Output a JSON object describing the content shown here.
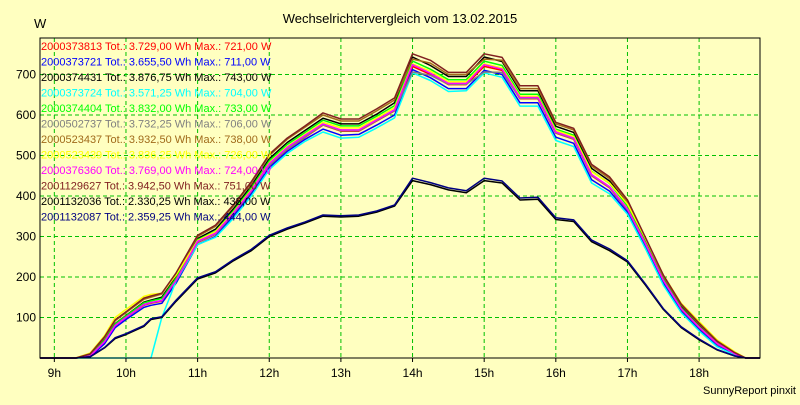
{
  "chart_data": {
    "type": "line",
    "title": "Wechselrichtervergleich vom 13.02.2015",
    "ylabel": "W",
    "xlabel": "",
    "footer": "SunnyReport pinxit",
    "xlim": [
      8.8,
      18.85
    ],
    "ylim": [
      0,
      790
    ],
    "grid": true,
    "legend_position": "top-left",
    "x_ticks": [
      {
        "value": 9,
        "label": "9h"
      },
      {
        "value": 10,
        "label": "10h"
      },
      {
        "value": 11,
        "label": "11h"
      },
      {
        "value": 12,
        "label": "12h"
      },
      {
        "value": 13,
        "label": "13h"
      },
      {
        "value": 14,
        "label": "14h"
      },
      {
        "value": 15,
        "label": "15h"
      },
      {
        "value": 16,
        "label": "16h"
      },
      {
        "value": 17,
        "label": "17h"
      },
      {
        "value": 18,
        "label": "18h"
      }
    ],
    "y_ticks": [
      100,
      200,
      300,
      400,
      500,
      600,
      700
    ],
    "x": [
      8.8,
      9.3,
      9.5,
      9.7,
      9.85,
      10.0,
      10.25,
      10.35,
      10.5,
      10.7,
      11.0,
      11.25,
      11.5,
      11.75,
      12.0,
      12.25,
      12.5,
      12.75,
      13.0,
      13.25,
      13.5,
      13.75,
      14.0,
      14.25,
      14.5,
      14.75,
      15.0,
      15.25,
      15.5,
      15.75,
      16.0,
      16.25,
      16.5,
      16.75,
      17.0,
      17.25,
      17.5,
      17.75,
      18.0,
      18.25,
      18.5,
      18.65,
      18.85
    ],
    "series": [
      {
        "name": "2000373813",
        "legend": "2000373813 Tot.: 3.729,00 Wh Max.: 721,00 W",
        "color": "#ff0000",
        "values": [
          0,
          0,
          5,
          40,
          80,
          100,
          130,
          135,
          140,
          190,
          285,
          305,
          355,
          410,
          475,
          515,
          545,
          575,
          560,
          560,
          585,
          610,
          720,
          700,
          675,
          675,
          720,
          710,
          640,
          640,
          555,
          540,
          450,
          420,
          365,
          280,
          190,
          120,
          75,
          35,
          10,
          0,
          0
        ]
      },
      {
        "name": "2000373721",
        "legend": "2000373721 Tot.: 3.655,50 Wh Max.: 711,00 W",
        "color": "#0000ff",
        "values": [
          0,
          0,
          3,
          35,
          75,
          95,
          125,
          130,
          135,
          185,
          280,
          300,
          350,
          405,
          470,
          510,
          540,
          565,
          550,
          552,
          575,
          600,
          712,
          692,
          665,
          665,
          710,
          700,
          630,
          630,
          545,
          530,
          440,
          412,
          360,
          275,
          185,
          115,
          70,
          30,
          8,
          0,
          0
        ]
      },
      {
        "name": "2000374431",
        "legend": "2000374431 Tot.: 3.876,75 Wh Max.: 743,00 W",
        "color": "#000000",
        "values": [
          0,
          0,
          8,
          45,
          85,
          105,
          138,
          143,
          150,
          200,
          295,
          318,
          368,
          425,
          492,
          532,
          562,
          592,
          578,
          578,
          602,
          630,
          743,
          722,
          695,
          695,
          743,
          732,
          660,
          660,
          572,
          557,
          468,
          437,
          380,
          290,
          198,
          127,
          80,
          38,
          12,
          0,
          0
        ]
      },
      {
        "name": "2000373724",
        "legend": "2000373724 Tot.: 3.571,25 Wh Max.: 704,00 W",
        "color": "#00ffff",
        "values": [
          0,
          0,
          0,
          0,
          0,
          0,
          0,
          0,
          100,
          190,
          280,
          298,
          345,
          400,
          465,
          505,
          535,
          558,
          543,
          545,
          568,
          593,
          704,
          685,
          658,
          660,
          704,
          693,
          622,
          622,
          537,
          522,
          432,
          405,
          355,
          270,
          180,
          112,
          67,
          28,
          7,
          0,
          0
        ]
      },
      {
        "name": "2000374404",
        "legend": "2000374404 Tot.: 3.832,00 Wh Max.: 733,00 W",
        "color": "#00ff00",
        "values": [
          0,
          0,
          6,
          44,
          84,
          104,
          136,
          141,
          147,
          197,
          292,
          313,
          363,
          420,
          487,
          527,
          557,
          587,
          573,
          573,
          597,
          623,
          733,
          713,
          687,
          687,
          733,
          722,
          651,
          651,
          565,
          550,
          461,
          431,
          375,
          286,
          195,
          124,
          78,
          37,
          11,
          0,
          0
        ]
      },
      {
        "name": "2000502737",
        "legend": "2000502737 Tot.: 3.732,25 Wh Max.: 706,00 W",
        "color": "#808080",
        "values": [
          0,
          0,
          5,
          41,
          81,
          101,
          131,
          136,
          141,
          191,
          286,
          306,
          356,
          411,
          476,
          516,
          546,
          576,
          561,
          561,
          586,
          611,
          706,
          698,
          676,
          676,
          706,
          705,
          641,
          641,
          556,
          541,
          451,
          421,
          366,
          281,
          191,
          121,
          76,
          36,
          10,
          0,
          0
        ]
      },
      {
        "name": "2000523437",
        "legend": "2000523437 Tot.: 3.932,50 Wh Max.: 738,00 W",
        "color": "#a06a1a",
        "values": [
          0,
          0,
          10,
          50,
          92,
          112,
          145,
          150,
          158,
          208,
          300,
          325,
          375,
          432,
          500,
          540,
          570,
          600,
          585,
          585,
          610,
          637,
          738,
          728,
          700,
          700,
          738,
          735,
          665,
          665,
          578,
          563,
          474,
          443,
          386,
          295,
          202,
          131,
          84,
          41,
          13,
          0,
          0
        ]
      },
      {
        "name": "2000523439",
        "legend": "2000523439 Tot.: 3.836,25 Wh Max.: 726,00 W",
        "color": "#ffff00",
        "values": [
          0,
          0,
          12,
          55,
          100,
          120,
          152,
          157,
          160,
          205,
          290,
          312,
          360,
          415,
          482,
          522,
          552,
          582,
          568,
          568,
          592,
          618,
          726,
          708,
          682,
          682,
          726,
          716,
          646,
          646,
          562,
          547,
          460,
          432,
          380,
          295,
          205,
          135,
          90,
          45,
          15,
          0,
          0
        ]
      },
      {
        "name": "2000376360",
        "legend": "2000376360 Tot.: 3.769,00 Wh Max.: 724,00 W",
        "color": "#ff00ff",
        "values": [
          0,
          0,
          5,
          40,
          80,
          100,
          132,
          137,
          142,
          192,
          288,
          308,
          358,
          413,
          480,
          520,
          550,
          578,
          563,
          563,
          588,
          613,
          724,
          703,
          678,
          678,
          724,
          713,
          643,
          643,
          558,
          543,
          453,
          423,
          368,
          283,
          192,
          122,
          76,
          36,
          10,
          0,
          0
        ]
      },
      {
        "name": "2001129627",
        "legend": "2001129627 Tot.: 3.942,50 Wh Max.: 751,00 W",
        "color": "#802020",
        "values": [
          0,
          0,
          10,
          52,
          94,
          114,
          148,
          153,
          160,
          210,
          303,
          328,
          378,
          435,
          503,
          543,
          573,
          605,
          590,
          590,
          615,
          642,
          751,
          735,
          705,
          705,
          751,
          742,
          672,
          672,
          582,
          567,
          478,
          447,
          390,
          298,
          205,
          133,
          86,
          42,
          13,
          0,
          0
        ]
      },
      {
        "name": "2001132036",
        "legend": "2001132036 Tot.: 2.330,25 Wh Max.: 438,00 W",
        "color": "#000000",
        "values": [
          0,
          0,
          3,
          25,
          48,
          58,
          78,
          95,
          100,
          140,
          195,
          210,
          240,
          265,
          300,
          318,
          333,
          350,
          348,
          350,
          360,
          375,
          438,
          428,
          415,
          408,
          438,
          432,
          390,
          392,
          342,
          337,
          287,
          265,
          237,
          180,
          120,
          75,
          45,
          20,
          5,
          0,
          0
        ]
      },
      {
        "name": "2001132087",
        "legend": "2001132087 Tot.: 2.359,25 Wh Max.: 444,00 W",
        "color": "#000080",
        "values": [
          0,
          0,
          3,
          26,
          50,
          60,
          80,
          97,
          102,
          143,
          198,
          213,
          243,
          268,
          303,
          321,
          336,
          353,
          351,
          353,
          363,
          378,
          444,
          433,
          420,
          413,
          444,
          437,
          395,
          397,
          346,
          341,
          291,
          269,
          240,
          183,
          122,
          77,
          47,
          21,
          5,
          0,
          0
        ]
      }
    ]
  }
}
